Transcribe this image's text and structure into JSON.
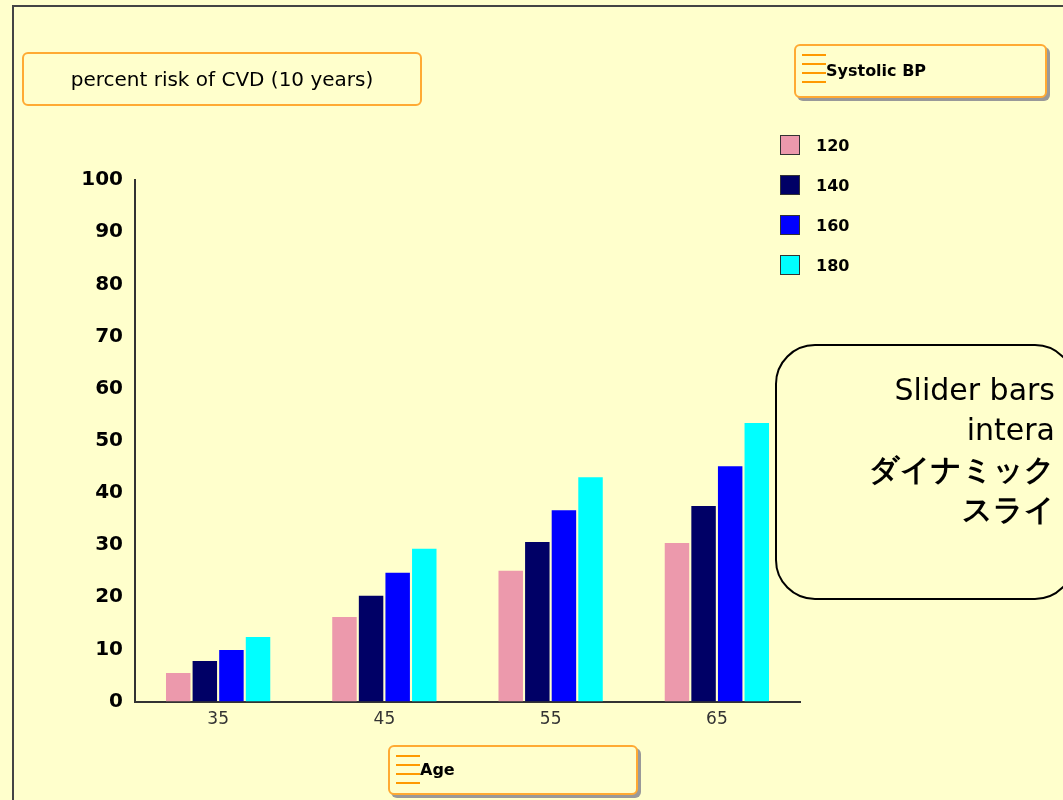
{
  "chart_data": {
    "type": "bar",
    "title": "percent risk of CVD (10 years)",
    "xlabel": "Age",
    "legend_title": "Systolic BP",
    "categories": [
      "35",
      "45",
      "55",
      "65"
    ],
    "series": [
      {
        "name": "120",
        "color": "#ec99ac",
        "values": [
          5.5,
          16.2,
          25.1,
          30.4
        ]
      },
      {
        "name": "140",
        "color": "#000066",
        "values": [
          7.8,
          20.3,
          30.6,
          37.5
        ]
      },
      {
        "name": "160",
        "color": "#0000ff",
        "values": [
          9.9,
          24.7,
          36.7,
          45.1
        ]
      },
      {
        "name": "180",
        "color": "#00ffff",
        "values": [
          12.4,
          29.3,
          43,
          53.4
        ]
      }
    ],
    "ylim": [
      0,
      100
    ],
    "yticks": [
      0,
      10,
      20,
      30,
      40,
      50,
      60,
      70,
      80,
      90,
      100
    ],
    "grid": false,
    "legend": "top right",
    "annotations": [
      "Slider bars",
      "intera",
      "ダイナミック",
      "スライ"
    ]
  }
}
